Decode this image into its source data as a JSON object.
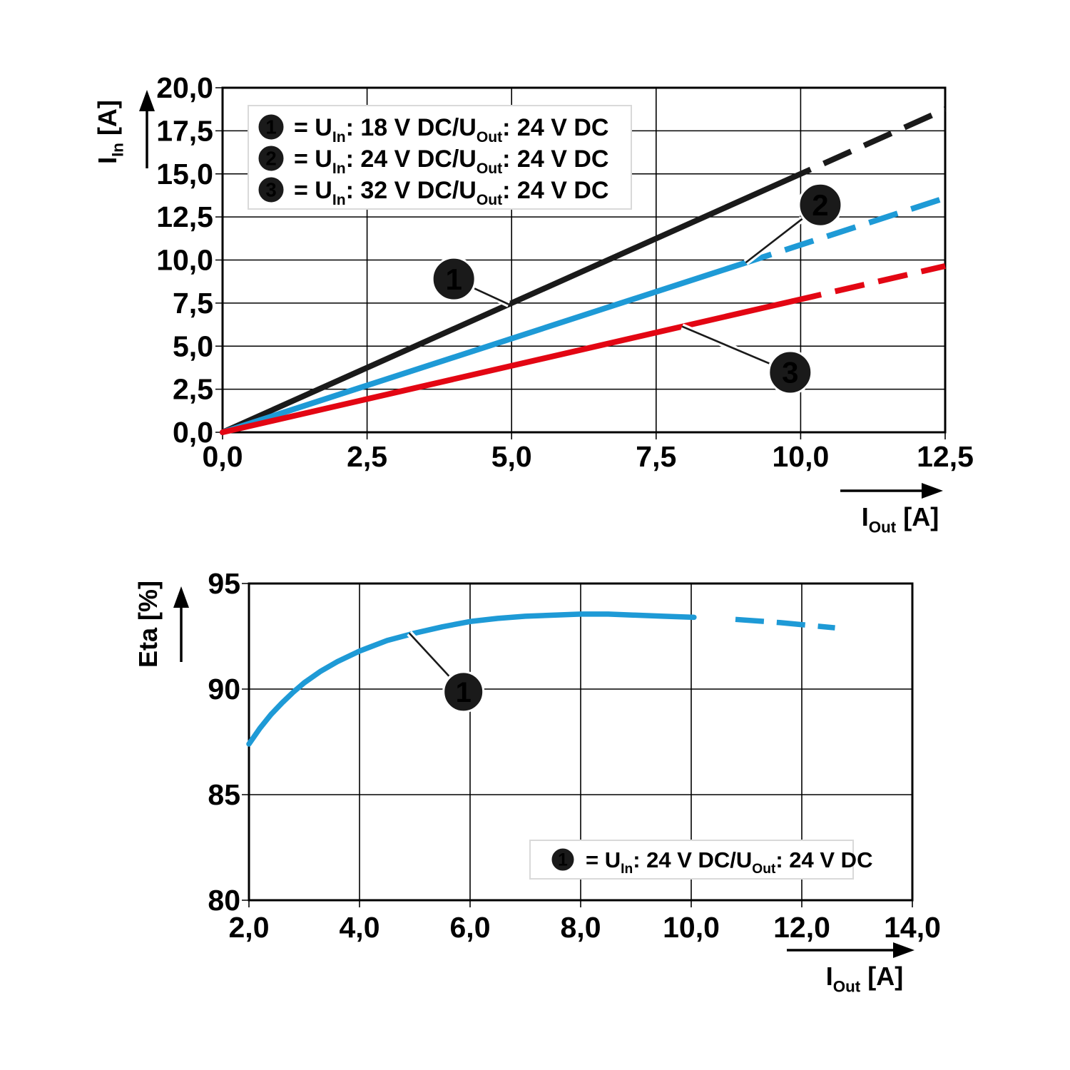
{
  "figure": {
    "background": "#ffffff",
    "grid_color": "#000000",
    "legend_border_color": "#d9d9d9",
    "callout_fill": "#1a1a1a",
    "callout_text_color": "#ffffff"
  },
  "chart_data": [
    {
      "type": "line",
      "id": "input-current-vs-output-current",
      "xlabel": "I_{Out} [A]",
      "ylabel": "I_{In} [A]",
      "xlim": [
        0,
        12.5
      ],
      "ylim": [
        0,
        20
      ],
      "xtick_labels": [
        "0,0",
        "2,5",
        "5,0",
        "7,5",
        "10,0",
        "12,5"
      ],
      "ytick_labels": [
        "0,0",
        "2,5",
        "5,0",
        "7,5",
        "10,0",
        "12,5",
        "15,0",
        "17,5",
        "20,0"
      ],
      "grid": true,
      "legend_position": "top-left-inside",
      "series": [
        {
          "name": "1",
          "legend": "= U_{In}: 18 V DC/U_{Out}: 24 V DC",
          "color": "#1a1a1a",
          "points": [
            [
              0,
              0
            ],
            [
              12.5,
              18.75
            ]
          ],
          "solid_until_x": 9.7
        },
        {
          "name": "2",
          "legend": "= U_{In}: 24 V DC/U_{Out}: 24 V DC",
          "color": "#1e9ad6",
          "points": [
            [
              0,
              0
            ],
            [
              12.5,
              13.6
            ]
          ],
          "solid_until_x": 9.0
        },
        {
          "name": "3",
          "legend": "= U_{In}: 32 V DC/U_{Out}: 24 V DC",
          "color": "#e30613",
          "points": [
            [
              0,
              0
            ],
            [
              12.5,
              9.65
            ]
          ],
          "solid_until_x": 9.85
        }
      ],
      "callouts": [
        {
          "label": "1",
          "circle_at": [
            4.0,
            8.9
          ],
          "points_to": [
            4.95,
            7.43
          ]
        },
        {
          "label": "2",
          "circle_at": [
            10.34,
            13.2
          ],
          "points_to": [
            9.05,
            9.85
          ]
        },
        {
          "label": "3",
          "circle_at": [
            9.82,
            3.48
          ],
          "points_to": [
            7.95,
            6.14
          ]
        }
      ]
    },
    {
      "type": "line",
      "id": "efficiency-vs-output-current",
      "xlabel": "I_{Out} [A]",
      "ylabel": "Eta [%]",
      "xlim": [
        2,
        14
      ],
      "ylim": [
        80,
        95
      ],
      "xtick_labels": [
        "2,0",
        "4,0",
        "6,0",
        "8,0",
        "10,0",
        "12,0",
        "14,0"
      ],
      "ytick_labels": [
        "80",
        "85",
        "90",
        "95"
      ],
      "grid": true,
      "legend_position": "bottom-right-inside",
      "series": [
        {
          "name": "1",
          "legend": "= U_{In}: 24 V DC/U_{Out}: 24 V DC",
          "color": "#1e9ad6",
          "points": [
            [
              2.0,
              87.4
            ],
            [
              2.2,
              88.15
            ],
            [
              2.4,
              88.8
            ],
            [
              2.6,
              89.35
            ],
            [
              2.8,
              89.85
            ],
            [
              3.0,
              90.3
            ],
            [
              3.3,
              90.85
            ],
            [
              3.6,
              91.3
            ],
            [
              4.0,
              91.8
            ],
            [
              4.5,
              92.3
            ],
            [
              5.0,
              92.65
            ],
            [
              5.5,
              92.95
            ],
            [
              6.0,
              93.2
            ],
            [
              6.5,
              93.35
            ],
            [
              7.0,
              93.45
            ],
            [
              7.5,
              93.5
            ],
            [
              8.0,
              93.55
            ],
            [
              8.5,
              93.55
            ],
            [
              9.0,
              93.5
            ],
            [
              9.5,
              93.45
            ],
            [
              10.05,
              93.4
            ],
            [
              10.8,
              93.3
            ],
            [
              11.6,
              93.15
            ],
            [
              12.6,
              92.9
            ]
          ],
          "solid_until_x": 10.05
        }
      ],
      "callouts": [
        {
          "label": "1",
          "circle_at": [
            5.88,
            89.87
          ],
          "points_to": [
            4.9,
            92.65
          ]
        }
      ]
    }
  ]
}
